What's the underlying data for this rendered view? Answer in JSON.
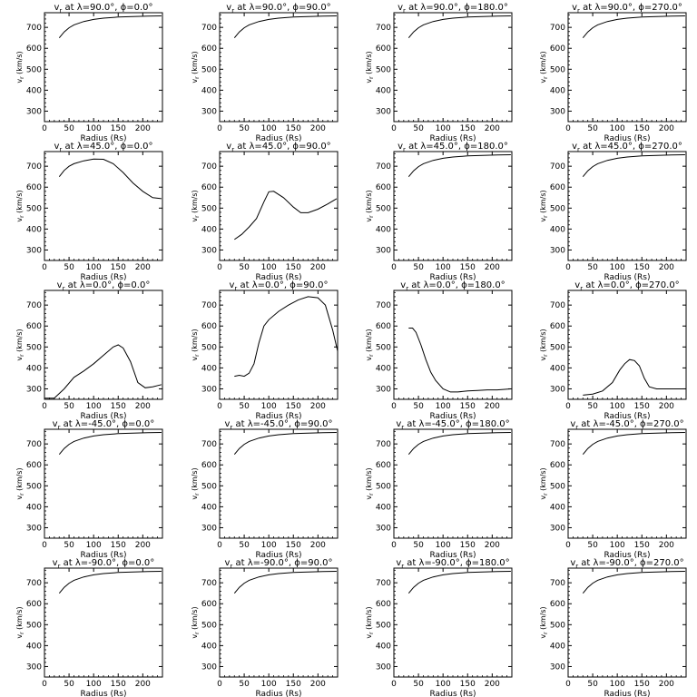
{
  "chart_data": [
    {
      "type": "line",
      "title": "v_r at λ=90.0°, ϕ=0.0°",
      "title_parts": {
        "lambda": "90.0",
        "phi": "0.0"
      },
      "xlabel": "Radius (Rs)",
      "ylabel": "v_r (km/s)",
      "xlim": [
        0,
        240
      ],
      "ylim": [
        250,
        770
      ],
      "xticks": [
        0,
        50,
        100,
        150,
        200
      ],
      "yticks": [
        300,
        400,
        500,
        600,
        700
      ],
      "x": [
        30,
        40,
        50,
        60,
        80,
        100,
        120,
        150,
        180,
        210,
        238
      ],
      "y": [
        650,
        678,
        698,
        712,
        728,
        738,
        744,
        749,
        752,
        754,
        755
      ]
    },
    {
      "type": "line",
      "title": "v_r at λ=90.0°, ϕ=90.0°",
      "title_parts": {
        "lambda": "90.0",
        "phi": "90.0"
      },
      "xlabel": "Radius (Rs)",
      "ylabel": "v_r (km/s)",
      "xlim": [
        0,
        240
      ],
      "ylim": [
        250,
        770
      ],
      "xticks": [
        0,
        50,
        100,
        150,
        200
      ],
      "yticks": [
        300,
        400,
        500,
        600,
        700
      ],
      "x": [
        30,
        40,
        50,
        60,
        80,
        100,
        120,
        150,
        180,
        210,
        238
      ],
      "y": [
        650,
        678,
        698,
        712,
        728,
        738,
        744,
        749,
        752,
        754,
        755
      ]
    },
    {
      "type": "line",
      "title": "v_r at λ=90.0°, ϕ=180.0°",
      "title_parts": {
        "lambda": "90.0",
        "phi": "180.0"
      },
      "xlabel": "Radius (Rs)",
      "ylabel": "v_r (km/s)",
      "xlim": [
        0,
        240
      ],
      "ylim": [
        250,
        770
      ],
      "xticks": [
        0,
        50,
        100,
        150,
        200
      ],
      "yticks": [
        300,
        400,
        500,
        600,
        700
      ],
      "x": [
        30,
        40,
        50,
        60,
        80,
        100,
        120,
        150,
        180,
        210,
        238
      ],
      "y": [
        650,
        678,
        698,
        712,
        728,
        738,
        744,
        749,
        752,
        754,
        755
      ]
    },
    {
      "type": "line",
      "title": "v_r at λ=90.0°, ϕ=270.0°",
      "title_parts": {
        "lambda": "90.0",
        "phi": "270.0"
      },
      "xlabel": "Radius (Rs)",
      "ylabel": "v_r (km/s)",
      "xlim": [
        0,
        240
      ],
      "ylim": [
        250,
        770
      ],
      "xticks": [
        0,
        50,
        100,
        150,
        200
      ],
      "yticks": [
        300,
        400,
        500,
        600,
        700
      ],
      "x": [
        30,
        40,
        50,
        60,
        80,
        100,
        120,
        150,
        180,
        210,
        238
      ],
      "y": [
        650,
        678,
        698,
        712,
        728,
        738,
        744,
        749,
        752,
        754,
        755
      ]
    },
    {
      "type": "line",
      "title": "v_r at λ=45.0°, ϕ=0.0°",
      "title_parts": {
        "lambda": "45.0",
        "phi": "0.0"
      },
      "xlabel": "Radius (Rs)",
      "ylabel": "v_r (km/s)",
      "xlim": [
        0,
        240
      ],
      "ylim": [
        250,
        770
      ],
      "xticks": [
        0,
        50,
        100,
        150,
        200
      ],
      "yticks": [
        300,
        400,
        500,
        600,
        700
      ],
      "x": [
        30,
        40,
        50,
        60,
        80,
        100,
        120,
        140,
        160,
        180,
        200,
        220,
        238
      ],
      "y": [
        650,
        680,
        700,
        712,
        726,
        734,
        733,
        712,
        670,
        620,
        580,
        550,
        545
      ]
    },
    {
      "type": "line",
      "title": "v_r at λ=45.0°, ϕ=90.0°",
      "title_parts": {
        "lambda": "45.0",
        "phi": "90.0"
      },
      "xlabel": "Radius (Rs)",
      "ylabel": "v_r (km/s)",
      "xlim": [
        0,
        240
      ],
      "ylim": [
        250,
        770
      ],
      "xticks": [
        0,
        50,
        100,
        150,
        200
      ],
      "yticks": [
        300,
        400,
        500,
        600,
        700
      ],
      "x": [
        30,
        45,
        60,
        75,
        90,
        100,
        110,
        130,
        150,
        165,
        180,
        200,
        220,
        238
      ],
      "y": [
        350,
        375,
        410,
        450,
        530,
        578,
        580,
        550,
        505,
        478,
        478,
        495,
        520,
        545
      ]
    },
    {
      "type": "line",
      "title": "v_r at λ=45.0°, ϕ=180.0°",
      "title_parts": {
        "lambda": "45.0",
        "phi": "180.0"
      },
      "xlabel": "Radius (Rs)",
      "ylabel": "v_r (km/s)",
      "xlim": [
        0,
        240
      ],
      "ylim": [
        250,
        770
      ],
      "xticks": [
        0,
        50,
        100,
        150,
        200
      ],
      "yticks": [
        300,
        400,
        500,
        600,
        700
      ],
      "x": [
        30,
        40,
        50,
        60,
        80,
        100,
        120,
        150,
        180,
        210,
        238
      ],
      "y": [
        650,
        678,
        698,
        712,
        728,
        738,
        744,
        749,
        752,
        754,
        755
      ]
    },
    {
      "type": "line",
      "title": "v_r at λ=45.0°, ϕ=270.0°",
      "title_parts": {
        "lambda": "45.0",
        "phi": "270.0"
      },
      "xlabel": "Radius (Rs)",
      "ylabel": "v_r (km/s)",
      "xlim": [
        0,
        240
      ],
      "ylim": [
        250,
        770
      ],
      "xticks": [
        0,
        50,
        100,
        150,
        200
      ],
      "yticks": [
        300,
        400,
        500,
        600,
        700
      ],
      "x": [
        30,
        40,
        50,
        60,
        80,
        100,
        120,
        150,
        180,
        210,
        238
      ],
      "y": [
        650,
        678,
        698,
        712,
        728,
        738,
        744,
        749,
        752,
        754,
        755
      ]
    },
    {
      "type": "line",
      "title": "v_r at λ=0.0°, ϕ=0.0°",
      "title_parts": {
        "lambda": "0.0",
        "phi": "0.0"
      },
      "xlabel": "Radius (Rs)",
      "ylabel": "v_r (km/s)",
      "xlim": [
        0,
        240
      ],
      "ylim": [
        250,
        770
      ],
      "xticks": [
        0,
        50,
        100,
        150,
        200
      ],
      "yticks": [
        300,
        400,
        500,
        600,
        700
      ],
      "x": [
        0,
        20,
        40,
        60,
        80,
        100,
        120,
        140,
        150,
        160,
        175,
        190,
        205,
        220,
        238
      ],
      "y": [
        255,
        255,
        300,
        355,
        385,
        420,
        460,
        500,
        510,
        495,
        430,
        330,
        305,
        310,
        320
      ]
    },
    {
      "type": "line",
      "title": "v_r at λ=0.0°, ϕ=90.0°",
      "title_parts": {
        "lambda": "0.0",
        "phi": "90.0"
      },
      "xlabel": "Radius (Rs)",
      "ylabel": "v_r (km/s)",
      "xlim": [
        0,
        240
      ],
      "ylim": [
        250,
        770
      ],
      "xticks": [
        0,
        50,
        100,
        150,
        200
      ],
      "yticks": [
        300,
        400,
        500,
        600,
        700
      ],
      "x": [
        30,
        40,
        50,
        60,
        70,
        80,
        90,
        100,
        120,
        140,
        160,
        180,
        200,
        215,
        230,
        240
      ],
      "y": [
        360,
        365,
        360,
        375,
        420,
        520,
        600,
        630,
        670,
        700,
        725,
        740,
        735,
        700,
        580,
        480
      ]
    },
    {
      "type": "line",
      "title": "v_r at λ=0.0°, ϕ=180.0°",
      "title_parts": {
        "lambda": "0.0",
        "phi": "180.0"
      },
      "xlabel": "Radius (Rs)",
      "ylabel": "v_r (km/s)",
      "xlim": [
        0,
        240
      ],
      "ylim": [
        250,
        770
      ],
      "xticks": [
        0,
        50,
        100,
        150,
        200
      ],
      "yticks": [
        300,
        400,
        500,
        600,
        700
      ],
      "x": [
        30,
        38,
        45,
        55,
        65,
        75,
        85,
        100,
        115,
        130,
        150,
        170,
        190,
        210,
        238
      ],
      "y": [
        590,
        590,
        570,
        510,
        440,
        380,
        340,
        300,
        285,
        285,
        290,
        292,
        295,
        295,
        300
      ]
    },
    {
      "type": "line",
      "title": "v_r at λ=0.0°, ϕ=270.0°",
      "title_parts": {
        "lambda": "0.0",
        "phi": "270.0"
      },
      "xlabel": "Radius (Rs)",
      "ylabel": "v_r (km/s)",
      "xlim": [
        0,
        240
      ],
      "ylim": [
        250,
        770
      ],
      "xticks": [
        0,
        50,
        100,
        150,
        200
      ],
      "yticks": [
        300,
        400,
        500,
        600,
        700
      ],
      "x": [
        30,
        50,
        70,
        90,
        105,
        115,
        125,
        135,
        145,
        155,
        165,
        180,
        200,
        220,
        238
      ],
      "y": [
        270,
        275,
        290,
        330,
        390,
        420,
        440,
        435,
        410,
        350,
        310,
        300,
        300,
        300,
        300
      ]
    },
    {
      "type": "line",
      "title": "v_r at λ=-45.0°, ϕ=0.0°",
      "title_parts": {
        "lambda": "-45.0",
        "phi": "0.0"
      },
      "xlabel": "Radius (Rs)",
      "ylabel": "v_r (km/s)",
      "xlim": [
        0,
        240
      ],
      "ylim": [
        250,
        770
      ],
      "xticks": [
        0,
        50,
        100,
        150,
        200
      ],
      "yticks": [
        300,
        400,
        500,
        600,
        700
      ],
      "x": [
        30,
        40,
        50,
        60,
        80,
        100,
        120,
        150,
        180,
        210,
        238
      ],
      "y": [
        650,
        678,
        698,
        712,
        728,
        738,
        744,
        749,
        752,
        754,
        755
      ]
    },
    {
      "type": "line",
      "title": "v_r at λ=-45.0°, ϕ=90.0°",
      "title_parts": {
        "lambda": "-45.0",
        "phi": "90.0"
      },
      "xlabel": "Radius (Rs)",
      "ylabel": "v_r (km/s)",
      "xlim": [
        0,
        240
      ],
      "ylim": [
        250,
        770
      ],
      "xticks": [
        0,
        50,
        100,
        150,
        200
      ],
      "yticks": [
        300,
        400,
        500,
        600,
        700
      ],
      "x": [
        30,
        40,
        50,
        60,
        80,
        100,
        120,
        150,
        180,
        210,
        238
      ],
      "y": [
        650,
        678,
        698,
        712,
        728,
        738,
        744,
        749,
        752,
        754,
        755
      ]
    },
    {
      "type": "line",
      "title": "v_r at λ=-45.0°, ϕ=180.0°",
      "title_parts": {
        "lambda": "-45.0",
        "phi": "180.0"
      },
      "xlabel": "Radius (Rs)",
      "ylabel": "v_r (km/s)",
      "xlim": [
        0,
        240
      ],
      "ylim": [
        250,
        770
      ],
      "xticks": [
        0,
        50,
        100,
        150,
        200
      ],
      "yticks": [
        300,
        400,
        500,
        600,
        700
      ],
      "x": [
        30,
        40,
        50,
        60,
        80,
        100,
        120,
        150,
        180,
        210,
        238
      ],
      "y": [
        650,
        678,
        698,
        712,
        728,
        738,
        744,
        749,
        752,
        754,
        755
      ]
    },
    {
      "type": "line",
      "title": "v_r at λ=-45.0°, ϕ=270.0°",
      "title_parts": {
        "lambda": "-45.0",
        "phi": "270.0"
      },
      "xlabel": "Radius (Rs)",
      "ylabel": "v_r (km/s)",
      "xlim": [
        0,
        240
      ],
      "ylim": [
        250,
        770
      ],
      "xticks": [
        0,
        50,
        100,
        150,
        200
      ],
      "yticks": [
        300,
        400,
        500,
        600,
        700
      ],
      "x": [
        30,
        40,
        50,
        60,
        80,
        100,
        120,
        150,
        180,
        210,
        238
      ],
      "y": [
        650,
        678,
        698,
        712,
        728,
        738,
        744,
        749,
        752,
        754,
        755
      ]
    },
    {
      "type": "line",
      "title": "v_r at λ=-90.0°, ϕ=0.0°",
      "title_parts": {
        "lambda": "-90.0",
        "phi": "0.0"
      },
      "xlabel": "Radius (Rs)",
      "ylabel": "v_r (km/s)",
      "xlim": [
        0,
        240
      ],
      "ylim": [
        250,
        770
      ],
      "xticks": [
        0,
        50,
        100,
        150,
        200
      ],
      "yticks": [
        300,
        400,
        500,
        600,
        700
      ],
      "x": [
        30,
        40,
        50,
        60,
        80,
        100,
        120,
        150,
        180,
        210,
        238
      ],
      "y": [
        650,
        678,
        698,
        712,
        728,
        738,
        744,
        749,
        752,
        754,
        755
      ]
    },
    {
      "type": "line",
      "title": "v_r at λ=-90.0°, ϕ=90.0°",
      "title_parts": {
        "lambda": "-90.0",
        "phi": "90.0"
      },
      "xlabel": "Radius (Rs)",
      "ylabel": "v_r (km/s)",
      "xlim": [
        0,
        240
      ],
      "ylim": [
        250,
        770
      ],
      "xticks": [
        0,
        50,
        100,
        150,
        200
      ],
      "yticks": [
        300,
        400,
        500,
        600,
        700
      ],
      "x": [
        30,
        40,
        50,
        60,
        80,
        100,
        120,
        150,
        180,
        210,
        238
      ],
      "y": [
        650,
        678,
        698,
        712,
        728,
        738,
        744,
        749,
        752,
        754,
        755
      ]
    },
    {
      "type": "line",
      "title": "v_r at λ=-90.0°, ϕ=180.0°",
      "title_parts": {
        "lambda": "-90.0",
        "phi": "180.0"
      },
      "xlabel": "Radius (Rs)",
      "ylabel": "v_r (km/s)",
      "xlim": [
        0,
        240
      ],
      "ylim": [
        250,
        770
      ],
      "xticks": [
        0,
        50,
        100,
        150,
        200
      ],
      "yticks": [
        300,
        400,
        500,
        600,
        700
      ],
      "x": [
        30,
        40,
        50,
        60,
        80,
        100,
        120,
        150,
        180,
        210,
        238
      ],
      "y": [
        650,
        678,
        698,
        712,
        728,
        738,
        744,
        749,
        752,
        754,
        755
      ]
    },
    {
      "type": "line",
      "title": "v_r at λ=-90.0°, ϕ=270.0°",
      "title_parts": {
        "lambda": "-90.0",
        "phi": "270.0"
      },
      "xlabel": "Radius (Rs)",
      "ylabel": "v_r (km/s)",
      "xlim": [
        0,
        240
      ],
      "ylim": [
        250,
        770
      ],
      "xticks": [
        0,
        50,
        100,
        150,
        200
      ],
      "yticks": [
        300,
        400,
        500,
        600,
        700
      ],
      "x": [
        30,
        40,
        50,
        60,
        80,
        100,
        120,
        150,
        180,
        210,
        238
      ],
      "y": [
        650,
        678,
        698,
        712,
        728,
        738,
        744,
        749,
        752,
        754,
        755
      ]
    }
  ]
}
